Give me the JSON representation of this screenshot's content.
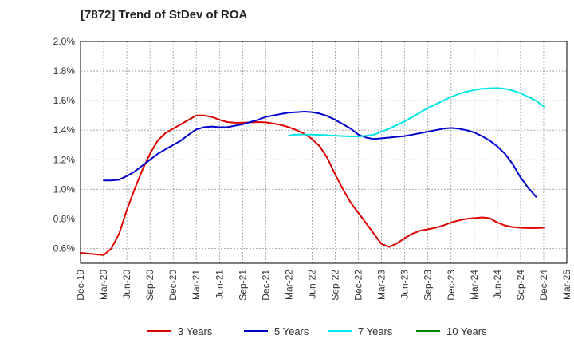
{
  "chart_data": {
    "type": "line",
    "title": "[7872]  Trend of StDev of ROA",
    "xlabel": "",
    "ylabel": "",
    "x_ticks": [
      "Dec-19",
      "Mar-20",
      "Jun-20",
      "Sep-20",
      "Dec-20",
      "Mar-21",
      "Jun-21",
      "Sep-21",
      "Dec-21",
      "Mar-22",
      "Jun-22",
      "Sep-22",
      "Dec-22",
      "Mar-23",
      "Jun-23",
      "Sep-23",
      "Dec-23",
      "Mar-24",
      "Jun-24",
      "Sep-24",
      "Dec-24",
      "Mar-25"
    ],
    "y_ticks": [
      "0.6%",
      "0.8%",
      "1.0%",
      "1.2%",
      "1.4%",
      "1.6%",
      "1.8%",
      "2.0%"
    ],
    "ylim": [
      0.5,
      2.0
    ],
    "grid": true,
    "legend_position": "bottom",
    "series": [
      {
        "name": "3 Years",
        "color": "#dd0000",
        "points": [
          [
            "Dec-19",
            0.57
          ],
          [
            "Jan-20",
            0.565
          ],
          [
            "Feb-20",
            0.56
          ],
          [
            "Mar-20",
            0.555
          ],
          [
            "Apr-20",
            0.6
          ],
          [
            "May-20",
            0.7
          ],
          [
            "Jun-20",
            0.86
          ],
          [
            "Jul-20",
            1.0
          ],
          [
            "Aug-20",
            1.13
          ],
          [
            "Sep-20",
            1.24
          ],
          [
            "Oct-20",
            1.33
          ],
          [
            "Nov-20",
            1.38
          ],
          [
            "Dec-20",
            1.41
          ],
          [
            "Jan-21",
            1.44
          ],
          [
            "Feb-21",
            1.47
          ],
          [
            "Mar-21",
            1.5
          ],
          [
            "Apr-21",
            1.5
          ],
          [
            "May-21",
            1.49
          ],
          [
            "Jun-21",
            1.47
          ],
          [
            "Jul-21",
            1.455
          ],
          [
            "Aug-21",
            1.45
          ],
          [
            "Sep-21",
            1.45
          ],
          [
            "Oct-21",
            1.453
          ],
          [
            "Nov-21",
            1.455
          ],
          [
            "Dec-21",
            1.453
          ],
          [
            "Jan-22",
            1.445
          ],
          [
            "Feb-22",
            1.435
          ],
          [
            "Mar-22",
            1.42
          ],
          [
            "Apr-22",
            1.4
          ],
          [
            "May-22",
            1.375
          ],
          [
            "Jun-22",
            1.34
          ],
          [
            "Jul-22",
            1.29
          ],
          [
            "Aug-22",
            1.21
          ],
          [
            "Sep-22",
            1.1
          ],
          [
            "Oct-22",
            1.0
          ],
          [
            "Nov-22",
            0.91
          ],
          [
            "Dec-22",
            0.84
          ],
          [
            "Jan-23",
            0.77
          ],
          [
            "Feb-23",
            0.7
          ],
          [
            "Mar-23",
            0.63
          ],
          [
            "Apr-23",
            0.61
          ],
          [
            "May-23",
            0.635
          ],
          [
            "Jun-23",
            0.67
          ],
          [
            "Jul-23",
            0.7
          ],
          [
            "Aug-23",
            0.72
          ],
          [
            "Sep-23",
            0.73
          ],
          [
            "Oct-23",
            0.74
          ],
          [
            "Nov-23",
            0.755
          ],
          [
            "Dec-23",
            0.775
          ],
          [
            "Jan-24",
            0.79
          ],
          [
            "Feb-24",
            0.8
          ],
          [
            "Mar-24",
            0.805
          ],
          [
            "Apr-24",
            0.81
          ],
          [
            "May-24",
            0.805
          ],
          [
            "Jun-24",
            0.775
          ],
          [
            "Jul-24",
            0.755
          ],
          [
            "Aug-24",
            0.745
          ],
          [
            "Sep-24",
            0.74
          ],
          [
            "Oct-24",
            0.738
          ],
          [
            "Nov-24",
            0.738
          ],
          [
            "Dec-24",
            0.74
          ]
        ]
      },
      {
        "name": "5 Years",
        "color": "#0000cc",
        "points": [
          [
            "Mar-20",
            1.06
          ],
          [
            "Apr-20",
            1.06
          ],
          [
            "May-20",
            1.065
          ],
          [
            "Jun-20",
            1.09
          ],
          [
            "Jul-20",
            1.12
          ],
          [
            "Aug-20",
            1.16
          ],
          [
            "Sep-20",
            1.2
          ],
          [
            "Oct-20",
            1.24
          ],
          [
            "Nov-20",
            1.27
          ],
          [
            "Dec-20",
            1.3
          ],
          [
            "Jan-21",
            1.33
          ],
          [
            "Feb-21",
            1.37
          ],
          [
            "Mar-21",
            1.405
          ],
          [
            "Apr-21",
            1.42
          ],
          [
            "May-21",
            1.425
          ],
          [
            "Jun-21",
            1.42
          ],
          [
            "Jul-21",
            1.42
          ],
          [
            "Aug-21",
            1.43
          ],
          [
            "Sep-21",
            1.44
          ],
          [
            "Oct-21",
            1.455
          ],
          [
            "Nov-21",
            1.47
          ],
          [
            "Dec-21",
            1.49
          ],
          [
            "Jan-22",
            1.5
          ],
          [
            "Feb-22",
            1.51
          ],
          [
            "Mar-22",
            1.518
          ],
          [
            "Apr-22",
            1.522
          ],
          [
            "May-22",
            1.525
          ],
          [
            "Jun-22",
            1.522
          ],
          [
            "Jul-22",
            1.512
          ],
          [
            "Aug-22",
            1.495
          ],
          [
            "Sep-22",
            1.47
          ],
          [
            "Oct-22",
            1.44
          ],
          [
            "Nov-22",
            1.41
          ],
          [
            "Dec-22",
            1.37
          ],
          [
            "Jan-23",
            1.35
          ],
          [
            "Feb-23",
            1.34
          ],
          [
            "Mar-23",
            1.345
          ],
          [
            "Apr-23",
            1.35
          ],
          [
            "May-23",
            1.355
          ],
          [
            "Jun-23",
            1.36
          ],
          [
            "Jul-23",
            1.37
          ],
          [
            "Aug-23",
            1.38
          ],
          [
            "Sep-23",
            1.39
          ],
          [
            "Oct-23",
            1.4
          ],
          [
            "Nov-23",
            1.41
          ],
          [
            "Dec-23",
            1.415
          ],
          [
            "Jan-24",
            1.41
          ],
          [
            "Feb-24",
            1.4
          ],
          [
            "Mar-24",
            1.385
          ],
          [
            "Apr-24",
            1.36
          ],
          [
            "May-24",
            1.33
          ],
          [
            "Jun-24",
            1.29
          ],
          [
            "Jul-24",
            1.24
          ],
          [
            "Aug-24",
            1.17
          ],
          [
            "Sep-24",
            1.08
          ],
          [
            "Oct-24",
            1.01
          ],
          [
            "Nov-24",
            0.95
          ]
        ]
      },
      {
        "name": "7 Years",
        "color": "#00e5e5",
        "points": [
          [
            "Mar-22",
            1.365
          ],
          [
            "Apr-22",
            1.37
          ],
          [
            "May-22",
            1.37
          ],
          [
            "Jun-22",
            1.37
          ],
          [
            "Jul-22",
            1.368
          ],
          [
            "Aug-22",
            1.366
          ],
          [
            "Sep-22",
            1.363
          ],
          [
            "Oct-22",
            1.36
          ],
          [
            "Nov-22",
            1.358
          ],
          [
            "Dec-22",
            1.358
          ],
          [
            "Jan-23",
            1.362
          ],
          [
            "Feb-23",
            1.37
          ],
          [
            "Mar-23",
            1.39
          ],
          [
            "Apr-23",
            1.41
          ],
          [
            "May-23",
            1.435
          ],
          [
            "Jun-23",
            1.46
          ],
          [
            "Jul-23",
            1.49
          ],
          [
            "Aug-23",
            1.52
          ],
          [
            "Sep-23",
            1.55
          ],
          [
            "Oct-23",
            1.575
          ],
          [
            "Nov-23",
            1.6
          ],
          [
            "Dec-23",
            1.625
          ],
          [
            "Jan-24",
            1.645
          ],
          [
            "Feb-24",
            1.66
          ],
          [
            "Mar-24",
            1.672
          ],
          [
            "Apr-24",
            1.68
          ],
          [
            "May-24",
            1.684
          ],
          [
            "Jun-24",
            1.685
          ],
          [
            "Jul-24",
            1.68
          ],
          [
            "Aug-24",
            1.668
          ],
          [
            "Sep-24",
            1.65
          ],
          [
            "Oct-24",
            1.625
          ],
          [
            "Nov-24",
            1.6
          ],
          [
            "Dec-24",
            1.56
          ]
        ]
      },
      {
        "name": "10 Years",
        "color": "#008000",
        "points": []
      }
    ]
  }
}
